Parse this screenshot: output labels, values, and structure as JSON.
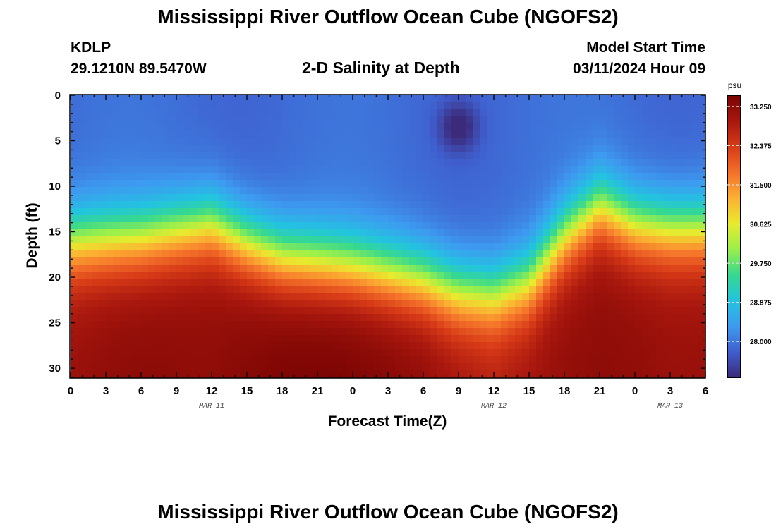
{
  "title": "Mississippi River Outflow Ocean Cube (NGOFS2)",
  "footer_title": "Mississippi River Outflow Ocean Cube (NGOFS2)",
  "station": {
    "id": "KDLP",
    "coords": "29.1210N  89.5470W"
  },
  "plot_subtitle": "2-D Salinity at Depth",
  "model_start": {
    "label": "Model Start Time",
    "value": "03/11/2024 Hour 09"
  },
  "chart_data": {
    "type": "heatmap",
    "title": "2-D Salinity at Depth",
    "xlabel": "Forecast Time(Z)",
    "ylabel": "Depth (ft)",
    "x_tick_labels": [
      "0",
      "3",
      "6",
      "9",
      "12",
      "15",
      "18",
      "21",
      "0",
      "3",
      "6",
      "9",
      "12",
      "15",
      "18",
      "21",
      "0",
      "3",
      "6"
    ],
    "x_range_hours": [
      0,
      54
    ],
    "date_labels": [
      {
        "label": "MAR 11",
        "hour": 12
      },
      {
        "label": "MAR 12",
        "hour": 36
      },
      {
        "label": "MAR 13",
        "hour": 51
      }
    ],
    "y_tick_labels": [
      "0",
      "5",
      "10",
      "15",
      "20",
      "25",
      "30"
    ],
    "y_ticks": [
      0,
      5,
      10,
      15,
      20,
      25,
      30
    ],
    "ylim": [
      0,
      31
    ],
    "y_inverted": true,
    "colorbar": {
      "unit": "psu",
      "range": [
        27.2,
        33.5
      ],
      "tick_labels": [
        "33.250",
        "32.375",
        "31.500",
        "30.625",
        "29.750",
        "28.875",
        "28.000"
      ],
      "tick_values": [
        33.25,
        32.375,
        31.5,
        30.625,
        29.75,
        28.875,
        28.0
      ],
      "colormap": [
        "#3c2a7a",
        "#3f5fcf",
        "#3d9bf0",
        "#22c4e0",
        "#36d98f",
        "#9bf04a",
        "#e9ea2e",
        "#fcb032",
        "#f4702a",
        "#d73a17",
        "#a8170e",
        "#7a0403"
      ]
    },
    "surface_salinity": 27.9,
    "halocline": [
      {
        "hour": 0,
        "depth_ft": 15.5,
        "bottom_psu": 33.1
      },
      {
        "hour": 6,
        "depth_ft": 15.0,
        "bottom_psu": 33.2
      },
      {
        "hour": 12,
        "depth_ft": 13.5,
        "bottom_psu": 33.3
      },
      {
        "hour": 15,
        "depth_ft": 15.5,
        "bottom_psu": 33.45
      },
      {
        "hour": 18,
        "depth_ft": 17.0,
        "bottom_psu": 33.5
      },
      {
        "hour": 24,
        "depth_ft": 18.0,
        "bottom_psu": 33.4
      },
      {
        "hour": 30,
        "depth_ft": 19.5,
        "bottom_psu": 33.3
      },
      {
        "hour": 33,
        "depth_ft": 21.0,
        "bottom_psu": 33.1
      },
      {
        "hour": 36,
        "depth_ft": 21.5,
        "bottom_psu": 32.9
      },
      {
        "hour": 39,
        "depth_ft": 20.0,
        "bottom_psu": 33.0
      },
      {
        "hour": 42,
        "depth_ft": 15.0,
        "bottom_psu": 33.1
      },
      {
        "hour": 45,
        "depth_ft": 11.5,
        "bottom_psu": 33.2
      },
      {
        "hour": 48,
        "depth_ft": 13.5,
        "bottom_psu": 33.25
      },
      {
        "hour": 51,
        "depth_ft": 14.0,
        "bottom_psu": 33.2
      },
      {
        "hour": 54,
        "depth_ft": 14.0,
        "bottom_psu": 33.2
      }
    ],
    "fresh_core": {
      "hour": 33,
      "depth_ft": 3.5,
      "min_psu": 27.25
    }
  }
}
